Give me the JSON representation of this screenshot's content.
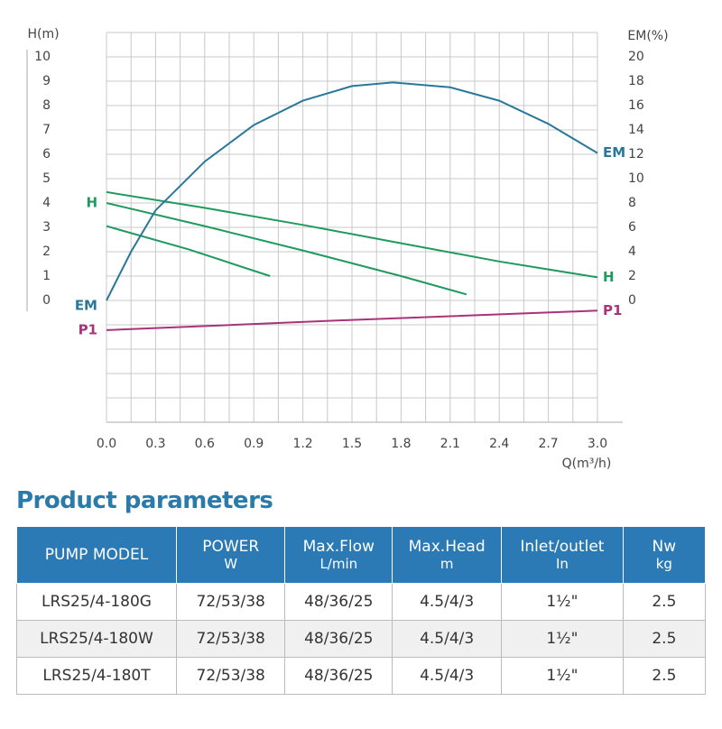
{
  "chart_data": {
    "type": "line",
    "ylabel": "H(m)",
    "y2label": "EM(%)",
    "xlabel": "Q(m³/h)",
    "xlim": [
      0,
      3
    ],
    "ylim": [
      -5,
      11
    ],
    "y2lim": [
      -10,
      22
    ],
    "xticks": [
      {
        "value": 0,
        "label": "0.0"
      },
      0.3,
      0.6,
      0.9,
      1.2,
      1.5,
      1.8,
      2.1,
      2.4,
      2.7,
      {
        "value": 3,
        "label": "3.0"
      }
    ],
    "yticks": [
      0,
      1,
      2,
      3,
      4,
      5,
      6,
      7,
      8,
      9,
      10
    ],
    "y2ticks": [
      0,
      2,
      4,
      6,
      8,
      10,
      12,
      14,
      16,
      18,
      20
    ],
    "grid": true,
    "series": [
      {
        "name": "H",
        "color": "#1f9a5e",
        "label_at": [
          "right"
        ],
        "x": [
          0,
          0.6,
          1.2,
          1.8,
          2.4,
          3.0
        ],
        "values": [
          4.45,
          3.8,
          3.1,
          2.35,
          1.6,
          0.95
        ]
      },
      {
        "name": "H",
        "color": "#1f9a5e",
        "label_at": [
          "left"
        ],
        "x": [
          0,
          0.6,
          1.2,
          1.8,
          2.2
        ],
        "values": [
          4.0,
          3.05,
          2.05,
          1.0,
          0.25
        ]
      },
      {
        "name": "H",
        "color": "#1f9a5e",
        "label_at": [],
        "x": [
          0,
          0.5,
          1.0
        ],
        "values": [
          3.05,
          2.1,
          1.0
        ]
      },
      {
        "name": "EM",
        "color": "#2a7898",
        "axis": "y2",
        "label_at": [
          "left",
          "right"
        ],
        "x": [
          0,
          0.15,
          0.3,
          0.6,
          0.9,
          1.2,
          1.5,
          1.75,
          2.1,
          2.4,
          2.7,
          3.0
        ],
        "values": [
          0,
          4,
          7.4,
          11.4,
          14.4,
          16.4,
          17.6,
          17.9,
          17.5,
          16.4,
          14.5,
          12.1
        ]
      },
      {
        "name": "P1",
        "color": "#a83378",
        "label_at": [
          "left",
          "right"
        ],
        "x": [
          0,
          1.5,
          3.0
        ],
        "values": [
          -1.22,
          -0.8,
          -0.42
        ]
      }
    ]
  },
  "table": {
    "title": "Product parameters",
    "header": [
      [
        "PUMP MODEL"
      ],
      [
        "POWER",
        "W"
      ],
      [
        "Max.Flow",
        "L/min"
      ],
      [
        "Max.Head",
        "m"
      ],
      [
        "Inlet/outlet",
        "In"
      ],
      [
        "Nw",
        "kg"
      ]
    ],
    "rows": [
      [
        "LRS25/4-180G",
        "72/53/38",
        "48/36/25",
        "4.5/4/3",
        "1½\"",
        "2.5"
      ],
      [
        "LRS25/4-180W",
        "72/53/38",
        "48/36/25",
        "4.5/4/3",
        "1½\"",
        "2.5"
      ],
      [
        "LRS25/4-180T",
        "72/53/38",
        "48/36/25",
        "4.5/4/3",
        "1½\"",
        "2.5"
      ]
    ]
  }
}
